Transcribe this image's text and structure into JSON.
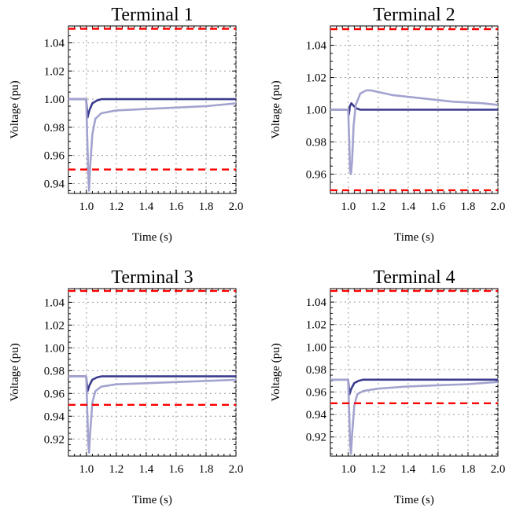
{
  "chart_data": [
    {
      "type": "line",
      "title": "Terminal 1",
      "xlabel": "Time (s)",
      "ylabel": "Voltage (pu)",
      "xlim": [
        0.88,
        2.0
      ],
      "ylim": [
        0.933,
        1.052
      ],
      "xticks": [
        1.0,
        1.2,
        1.4,
        1.6,
        1.8,
        2.0
      ],
      "xtick_labels": [
        "1.0",
        "1.2",
        "1.4",
        "1.6",
        "1.8",
        "2.0"
      ],
      "yticks": [
        0.94,
        0.96,
        0.98,
        1.0,
        1.02,
        1.04
      ],
      "ytick_labels": [
        "0.94",
        "0.96",
        "0.98",
        "1.00",
        "1.02",
        "1.04"
      ],
      "grid": true,
      "series": [
        {
          "color": "#3b3b8e",
          "x": [
            0.88,
            0.998,
            1.0,
            1.008,
            1.02,
            1.04,
            1.07,
            1.1,
            1.2,
            1.5,
            2.0
          ],
          "y": [
            1.0,
            1.0,
            0.998,
            0.987,
            0.992,
            0.997,
            0.999,
            1.0,
            1.0,
            1.0,
            1.0
          ]
        },
        {
          "color": "#a3a3cf",
          "x": [
            0.88,
            0.998,
            1.0,
            1.005,
            1.012,
            1.018,
            1.025,
            1.04,
            1.06,
            1.1,
            1.15,
            1.2,
            1.4,
            1.6,
            1.8,
            2.0
          ],
          "y": [
            1.0,
            1.0,
            0.995,
            0.975,
            0.948,
            0.935,
            0.952,
            0.975,
            0.986,
            0.99,
            0.991,
            0.992,
            0.993,
            0.994,
            0.995,
            0.997
          ]
        },
        {
          "color": "#ff0000",
          "dashed": true,
          "x": [
            0.88,
            2.0
          ],
          "y": [
            1.05,
            1.05
          ]
        },
        {
          "color": "#ff0000",
          "dashed": true,
          "x": [
            0.88,
            2.0
          ],
          "y": [
            0.95,
            0.95
          ]
        }
      ]
    },
    {
      "type": "line",
      "title": "Terminal 2",
      "xlabel": "Time (s)",
      "ylabel": "Voltage (pu)",
      "xlim": [
        0.88,
        2.0
      ],
      "ylim": [
        0.948,
        1.052
      ],
      "xticks": [
        1.0,
        1.2,
        1.4,
        1.6,
        1.8,
        2.0
      ],
      "xtick_labels": [
        "1.0",
        "1.2",
        "1.4",
        "1.6",
        "1.8",
        "2.0"
      ],
      "yticks": [
        0.96,
        0.98,
        1.0,
        1.02,
        1.04
      ],
      "ytick_labels": [
        "0.96",
        "0.98",
        "1.00",
        "1.02",
        "1.04"
      ],
      "grid": true,
      "series": [
        {
          "color": "#3b3b8e",
          "x": [
            0.88,
            0.998,
            1.0,
            1.004,
            1.01,
            1.02,
            1.03,
            1.05,
            1.08,
            1.12,
            1.2,
            1.5,
            2.0
          ],
          "y": [
            1.0,
            1.0,
            0.999,
            0.997,
            1.002,
            1.004,
            1.003,
            1.001,
            1.0,
            1.0,
            1.0,
            1.0,
            1.0
          ]
        },
        {
          "color": "#a3a3cf",
          "x": [
            0.88,
            0.998,
            1.0,
            1.006,
            1.012,
            1.018,
            1.025,
            1.035,
            1.05,
            1.08,
            1.12,
            1.15,
            1.2,
            1.3,
            1.5,
            1.7,
            1.9,
            2.0
          ],
          "y": [
            1.0,
            1.0,
            0.998,
            0.98,
            0.962,
            0.96,
            0.968,
            0.99,
            1.003,
            1.01,
            1.012,
            1.012,
            1.011,
            1.009,
            1.007,
            1.005,
            1.004,
            1.003
          ]
        },
        {
          "color": "#ff0000",
          "dashed": true,
          "x": [
            0.88,
            2.0
          ],
          "y": [
            1.05,
            1.05
          ]
        },
        {
          "color": "#ff0000",
          "dashed": true,
          "x": [
            0.88,
            2.0
          ],
          "y": [
            0.95,
            0.95
          ]
        }
      ]
    },
    {
      "type": "line",
      "title": "Terminal 3",
      "xlabel": "Time (s)",
      "ylabel": "Voltage (pu)",
      "xlim": [
        0.88,
        2.0
      ],
      "ylim": [
        0.905,
        1.052
      ],
      "xticks": [
        1.0,
        1.2,
        1.4,
        1.6,
        1.8,
        2.0
      ],
      "xtick_labels": [
        "1.0",
        "1.2",
        "1.4",
        "1.6",
        "1.8",
        "2.0"
      ],
      "yticks": [
        0.92,
        0.94,
        0.96,
        0.98,
        1.0,
        1.02,
        1.04
      ],
      "ytick_labels": [
        "0.92",
        "0.94",
        "0.96",
        "0.98",
        "1.00",
        "1.02",
        "1.04"
      ],
      "grid": true,
      "series": [
        {
          "color": "#3b3b8e",
          "x": [
            0.88,
            0.998,
            1.0,
            1.008,
            1.02,
            1.04,
            1.07,
            1.1,
            1.2,
            1.5,
            2.0
          ],
          "y": [
            0.975,
            0.975,
            0.973,
            0.962,
            0.967,
            0.972,
            0.974,
            0.975,
            0.975,
            0.975,
            0.975
          ]
        },
        {
          "color": "#a3a3cf",
          "x": [
            0.88,
            0.998,
            1.0,
            1.005,
            1.012,
            1.018,
            1.025,
            1.04,
            1.06,
            1.1,
            1.15,
            1.2,
            1.4,
            1.6,
            1.8,
            2.0
          ],
          "y": [
            0.975,
            0.975,
            0.97,
            0.948,
            0.918,
            0.908,
            0.925,
            0.952,
            0.962,
            0.966,
            0.967,
            0.968,
            0.969,
            0.97,
            0.971,
            0.972
          ]
        },
        {
          "color": "#ff0000",
          "dashed": true,
          "x": [
            0.88,
            2.0
          ],
          "y": [
            1.05,
            1.05
          ]
        },
        {
          "color": "#ff0000",
          "dashed": true,
          "x": [
            0.88,
            2.0
          ],
          "y": [
            0.95,
            0.95
          ]
        }
      ]
    },
    {
      "type": "line",
      "title": "Terminal 4",
      "xlabel": "Time (s)",
      "ylabel": "Voltage (pu)",
      "xlim": [
        0.88,
        2.0
      ],
      "ylim": [
        0.903,
        1.052
      ],
      "xticks": [
        1.0,
        1.2,
        1.4,
        1.6,
        1.8,
        2.0
      ],
      "xtick_labels": [
        "1.0",
        "1.2",
        "1.4",
        "1.6",
        "1.8",
        "2.0"
      ],
      "yticks": [
        0.92,
        0.94,
        0.96,
        0.98,
        1.0,
        1.02,
        1.04
      ],
      "ytick_labels": [
        "0.92",
        "0.94",
        "0.96",
        "0.98",
        "1.00",
        "1.02",
        "1.04"
      ],
      "grid": true,
      "series": [
        {
          "color": "#3b3b8e",
          "x": [
            0.88,
            0.998,
            1.0,
            1.008,
            1.02,
            1.04,
            1.07,
            1.1,
            1.2,
            1.5,
            2.0
          ],
          "y": [
            0.971,
            0.971,
            0.969,
            0.958,
            0.963,
            0.968,
            0.97,
            0.971,
            0.971,
            0.971,
            0.971
          ]
        },
        {
          "color": "#a3a3cf",
          "x": [
            0.88,
            0.998,
            1.0,
            1.005,
            1.012,
            1.018,
            1.025,
            1.04,
            1.06,
            1.1,
            1.15,
            1.2,
            1.4,
            1.6,
            1.8,
            2.0
          ],
          "y": [
            0.971,
            0.971,
            0.966,
            0.944,
            0.914,
            0.905,
            0.922,
            0.948,
            0.958,
            0.961,
            0.962,
            0.963,
            0.965,
            0.966,
            0.967,
            0.969
          ]
        },
        {
          "color": "#ff0000",
          "dashed": true,
          "x": [
            0.88,
            2.0
          ],
          "y": [
            1.05,
            1.05
          ]
        },
        {
          "color": "#ff0000",
          "dashed": true,
          "x": [
            0.88,
            2.0
          ],
          "y": [
            0.95,
            0.95
          ]
        }
      ]
    }
  ]
}
